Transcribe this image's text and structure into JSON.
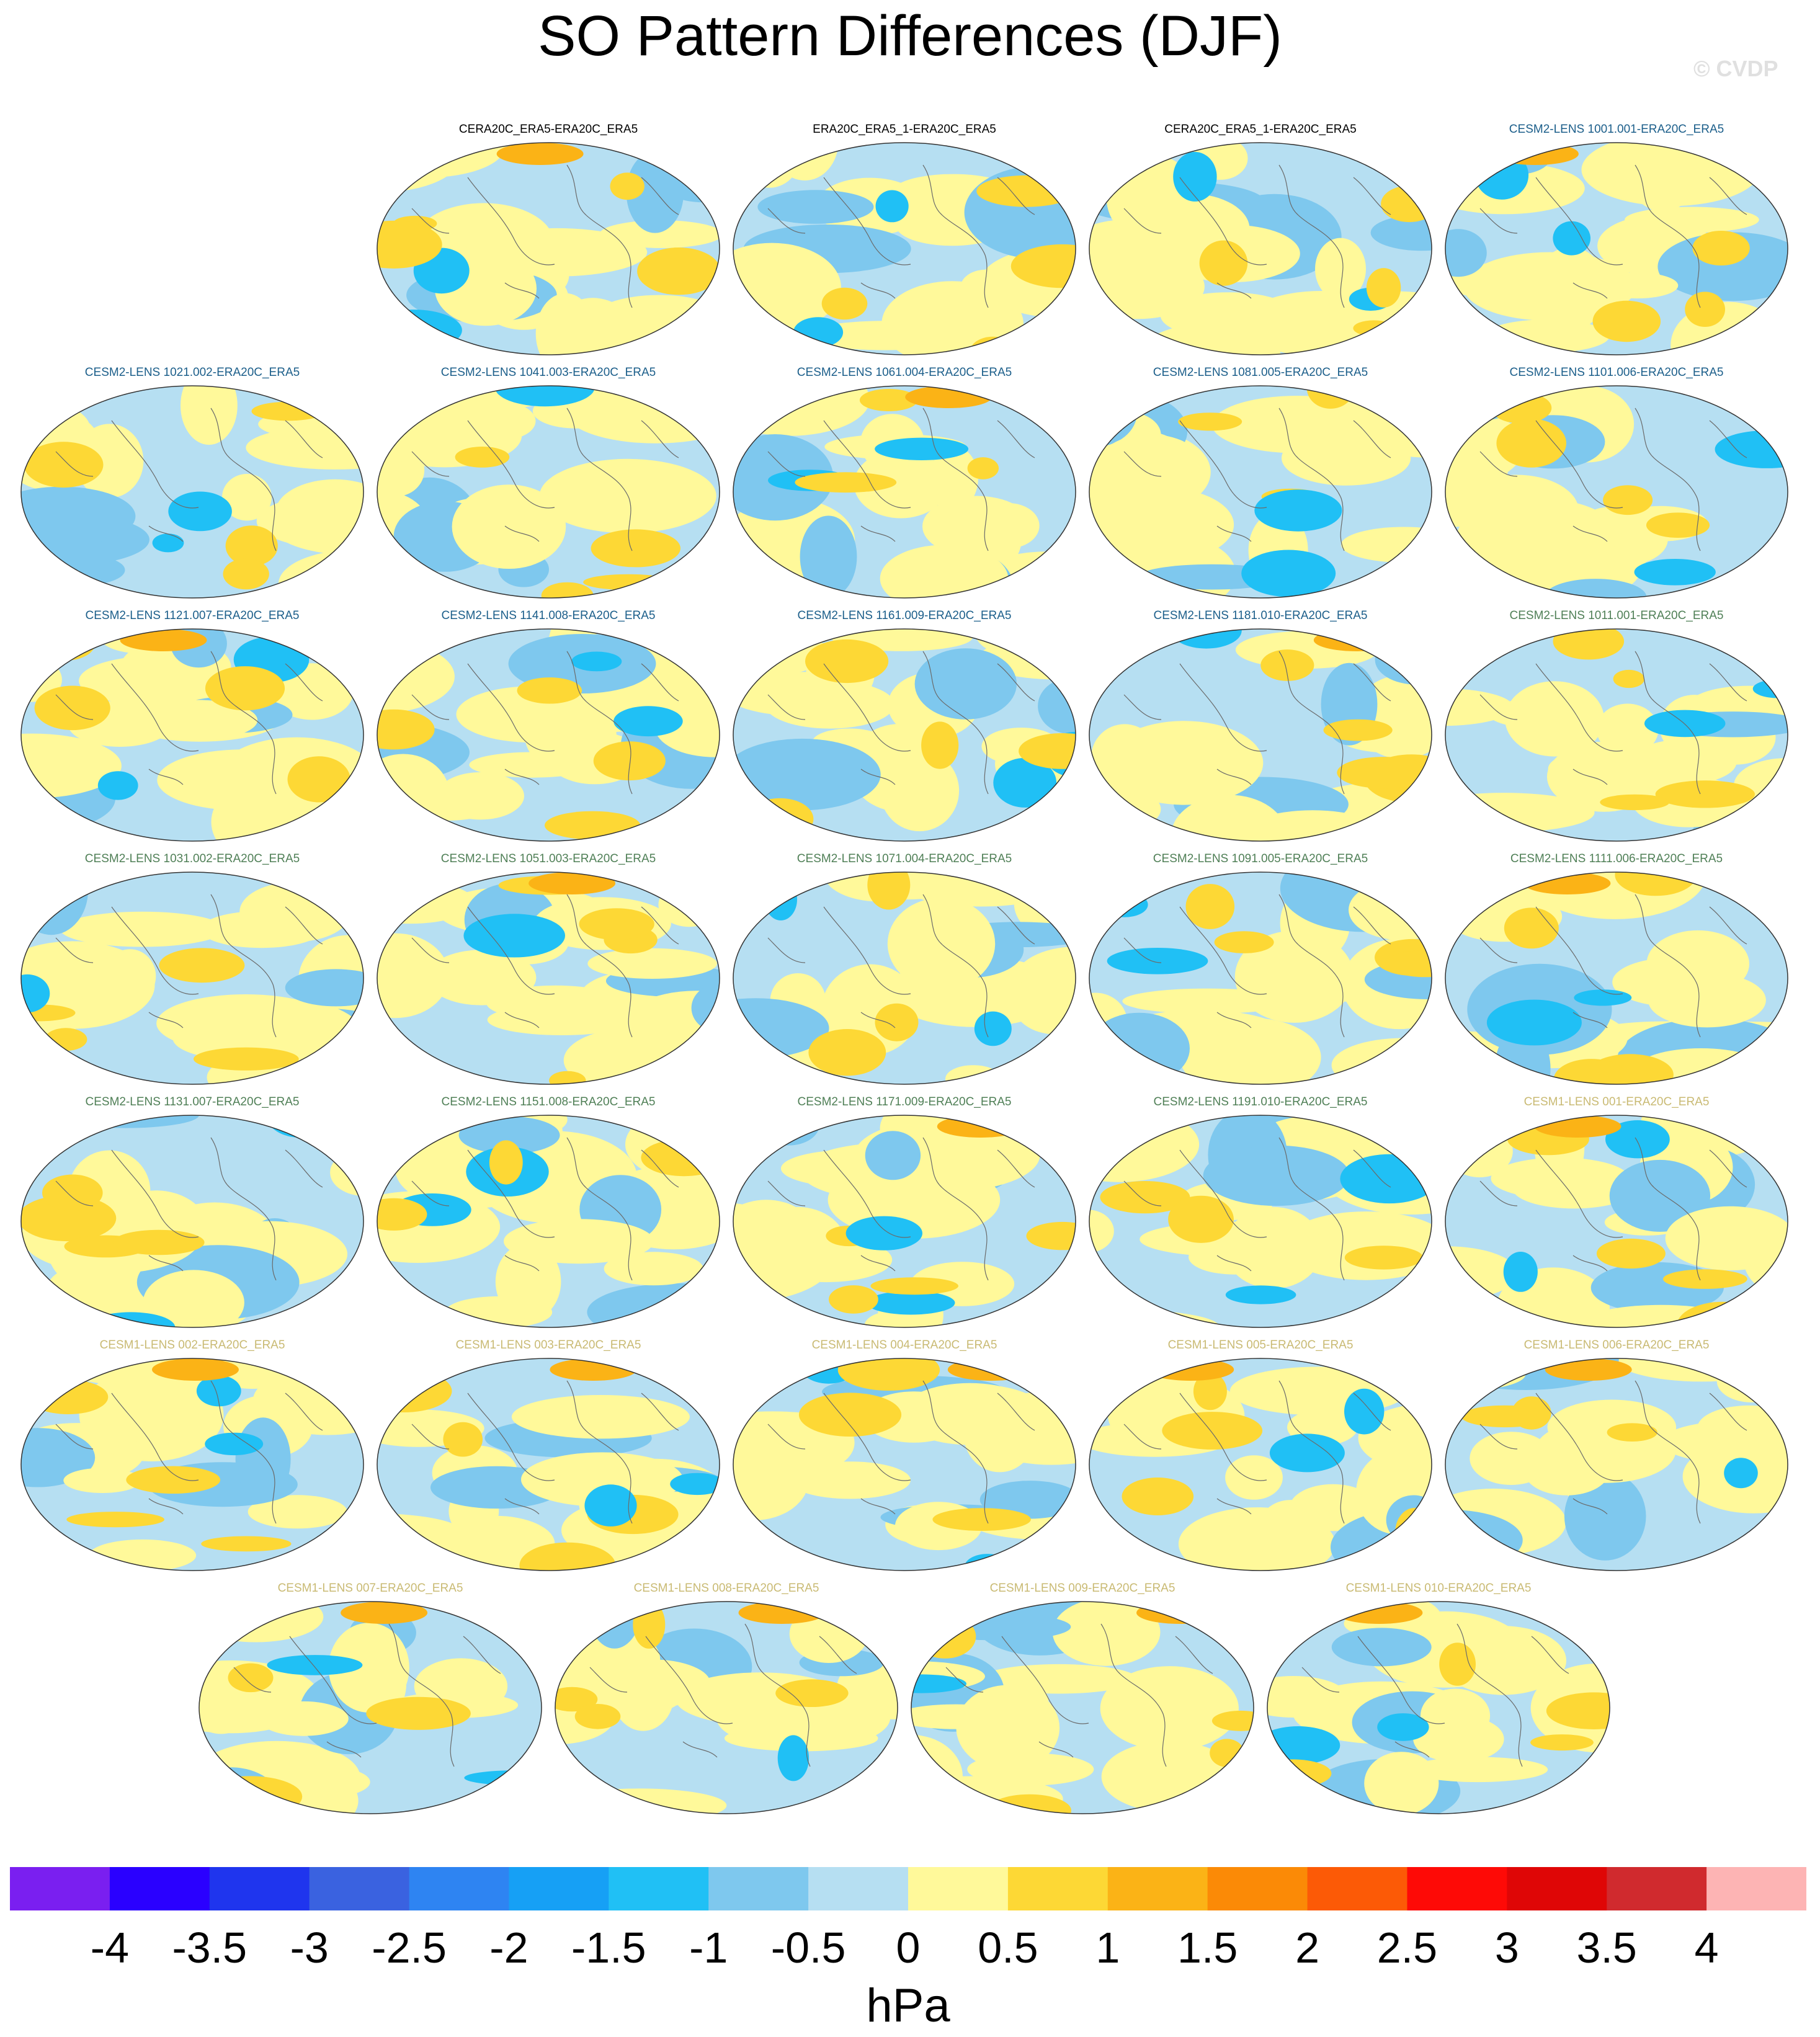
{
  "title": "SO Pattern Differences (DJF)",
  "watermark": "© CVDP",
  "rows": [
    [
      {
        "label": "CERA20C_ERA5-ERA20C_ERA5",
        "group": "obs"
      },
      {
        "label": "ERA20C_ERA5_1-ERA20C_ERA5",
        "group": "obs"
      },
      {
        "label": "CERA20C_ERA5_1-ERA20C_ERA5",
        "group": "obs"
      },
      {
        "label": "CESM2-LENS 1001.001-ERA20C_ERA5",
        "group": "cesm2a"
      }
    ],
    [
      {
        "label": "CESM2-LENS 1021.002-ERA20C_ERA5",
        "group": "cesm2a"
      },
      {
        "label": "CESM2-LENS 1041.003-ERA20C_ERA5",
        "group": "cesm2a"
      },
      {
        "label": "CESM2-LENS 1061.004-ERA20C_ERA5",
        "group": "cesm2a"
      },
      {
        "label": "CESM2-LENS 1081.005-ERA20C_ERA5",
        "group": "cesm2a"
      },
      {
        "label": "CESM2-LENS 1101.006-ERA20C_ERA5",
        "group": "cesm2a"
      }
    ],
    [
      {
        "label": "CESM2-LENS 1121.007-ERA20C_ERA5",
        "group": "cesm2a"
      },
      {
        "label": "CESM2-LENS 1141.008-ERA20C_ERA5",
        "group": "cesm2a"
      },
      {
        "label": "CESM2-LENS 1161.009-ERA20C_ERA5",
        "group": "cesm2a"
      },
      {
        "label": "CESM2-LENS 1181.010-ERA20C_ERA5",
        "group": "cesm2a"
      },
      {
        "label": "CESM2-LENS 1011.001-ERA20C_ERA5",
        "group": "cesm2b"
      }
    ],
    [
      {
        "label": "CESM2-LENS 1031.002-ERA20C_ERA5",
        "group": "cesm2b"
      },
      {
        "label": "CESM2-LENS 1051.003-ERA20C_ERA5",
        "group": "cesm2b"
      },
      {
        "label": "CESM2-LENS 1071.004-ERA20C_ERA5",
        "group": "cesm2b"
      },
      {
        "label": "CESM2-LENS 1091.005-ERA20C_ERA5",
        "group": "cesm2b"
      },
      {
        "label": "CESM2-LENS 1111.006-ERA20C_ERA5",
        "group": "cesm2b"
      }
    ],
    [
      {
        "label": "CESM2-LENS 1131.007-ERA20C_ERA5",
        "group": "cesm2b"
      },
      {
        "label": "CESM2-LENS 1151.008-ERA20C_ERA5",
        "group": "cesm2b"
      },
      {
        "label": "CESM2-LENS 1171.009-ERA20C_ERA5",
        "group": "cesm2b"
      },
      {
        "label": "CESM2-LENS 1191.010-ERA20C_ERA5",
        "group": "cesm2b"
      },
      {
        "label": "CESM1-LENS 001-ERA20C_ERA5",
        "group": "cesm1"
      }
    ],
    [
      {
        "label": "CESM1-LENS 002-ERA20C_ERA5",
        "group": "cesm1"
      },
      {
        "label": "CESM1-LENS 003-ERA20C_ERA5",
        "group": "cesm1"
      },
      {
        "label": "CESM1-LENS 004-ERA20C_ERA5",
        "group": "cesm1"
      },
      {
        "label": "CESM1-LENS 005-ERA20C_ERA5",
        "group": "cesm1"
      },
      {
        "label": "CESM1-LENS 006-ERA20C_ERA5",
        "group": "cesm1"
      }
    ],
    [
      {
        "label": "CESM1-LENS 007-ERA20C_ERA5",
        "group": "cesm1"
      },
      {
        "label": "CESM1-LENS 008-ERA20C_ERA5",
        "group": "cesm1"
      },
      {
        "label": "CESM1-LENS 009-ERA20C_ERA5",
        "group": "cesm1"
      },
      {
        "label": "CESM1-LENS 010-ERA20C_ERA5",
        "group": "cesm1"
      }
    ]
  ],
  "group_colors": {
    "obs": "#000000",
    "cesm2a": "#1b5e8a",
    "cesm2b": "#4f7f56",
    "cesm1": "#c9ba73"
  },
  "chart_data": {
    "type": "heatmap",
    "title": "SO Pattern Differences (DJF)",
    "colorbar": {
      "units": "hPa",
      "levels": [
        -4,
        -3.5,
        -3,
        -2.5,
        -2,
        -1.5,
        -1,
        -0.5,
        0,
        0.5,
        1,
        1.5,
        2,
        2.5,
        3,
        3.5,
        4
      ],
      "tick_labels": [
        "-4",
        "-3.5",
        "-3",
        "-2.5",
        "-2",
        "-1.5",
        "-1",
        "-0.5",
        "0",
        "0.5",
        "1",
        "1.5",
        "2",
        "2.5",
        "3",
        "3.5",
        "4"
      ],
      "colors": [
        "#7a1ff0",
        "#2a00ff",
        "#1f35ee",
        "#3a62e0",
        "#2e84f2",
        "#16a0f5",
        "#20c0f5",
        "#7ec8ee",
        "#b6dff2",
        "#fff99a",
        "#fdd835",
        "#fbb316",
        "#fb8a06",
        "#fc5a06",
        "#fe0a06",
        "#df0606",
        "#d02a2e",
        "#fdb4b4"
      ]
    }
  }
}
